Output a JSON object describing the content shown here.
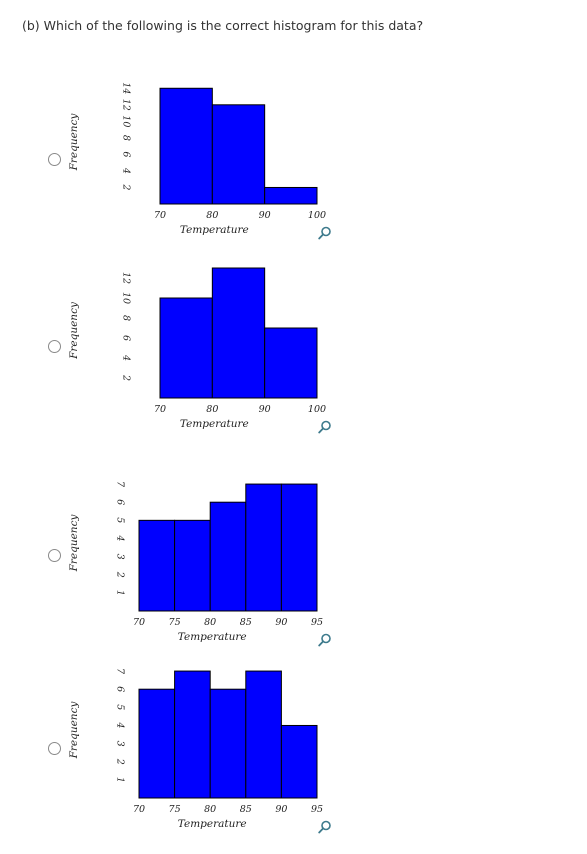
{
  "question": "(b) Which of the following is the correct histogram for this data?",
  "colors": {
    "bar": "#0000ff",
    "edge": "#000000"
  },
  "options": [
    {
      "chart_data": {
        "type": "bar",
        "xlabel": "Temperature",
        "ylabel": "Frequency",
        "xticks": [
          70,
          80,
          90,
          100
        ],
        "yticks": [
          2,
          4,
          6,
          8,
          10,
          12,
          14
        ],
        "xlim": [
          70,
          100
        ],
        "ylim": [
          0,
          15
        ],
        "bins": [
          {
            "x0": 70,
            "x1": 80,
            "value": 14
          },
          {
            "x0": 80,
            "x1": 90,
            "value": 12
          },
          {
            "x0": 90,
            "x1": 100,
            "value": 2
          }
        ]
      }
    },
    {
      "chart_data": {
        "type": "bar",
        "xlabel": "Temperature",
        "ylabel": "Frequency",
        "xticks": [
          70,
          80,
          90,
          100
        ],
        "yticks": [
          2,
          4,
          6,
          8,
          10,
          12
        ],
        "xlim": [
          70,
          100
        ],
        "ylim": [
          0,
          13.5
        ],
        "bins": [
          {
            "x0": 70,
            "x1": 80,
            "value": 10
          },
          {
            "x0": 80,
            "x1": 90,
            "value": 13
          },
          {
            "x0": 90,
            "x1": 100,
            "value": 7
          }
        ]
      }
    },
    {
      "chart_data": {
        "type": "bar",
        "xlabel": "Temperature",
        "ylabel": "Frequency",
        "xticks": [
          70,
          75,
          80,
          85,
          90,
          95
        ],
        "yticks": [
          1,
          2,
          3,
          4,
          5,
          6,
          7
        ],
        "xlim": [
          70,
          95
        ],
        "ylim": [
          0,
          7.5
        ],
        "bins": [
          {
            "x0": 70,
            "x1": 75,
            "value": 5
          },
          {
            "x0": 75,
            "x1": 80,
            "value": 5
          },
          {
            "x0": 80,
            "x1": 85,
            "value": 6
          },
          {
            "x0": 85,
            "x1": 90,
            "value": 7
          },
          {
            "x0": 90,
            "x1": 95,
            "value": 7
          }
        ]
      }
    },
    {
      "chart_data": {
        "type": "bar",
        "xlabel": "Temperature",
        "ylabel": "Frequency",
        "xticks": [
          70,
          75,
          80,
          85,
          90,
          95
        ],
        "yticks": [
          1,
          2,
          3,
          4,
          5,
          6,
          7
        ],
        "xlim": [
          70,
          95
        ],
        "ylim": [
          0,
          7.5
        ],
        "bins": [
          {
            "x0": 70,
            "x1": 75,
            "value": 6
          },
          {
            "x0": 75,
            "x1": 80,
            "value": 7
          },
          {
            "x0": 80,
            "x1": 85,
            "value": 6
          },
          {
            "x0": 85,
            "x1": 90,
            "value": 7
          },
          {
            "x0": 90,
            "x1": 95,
            "value": 4
          }
        ]
      }
    }
  ]
}
